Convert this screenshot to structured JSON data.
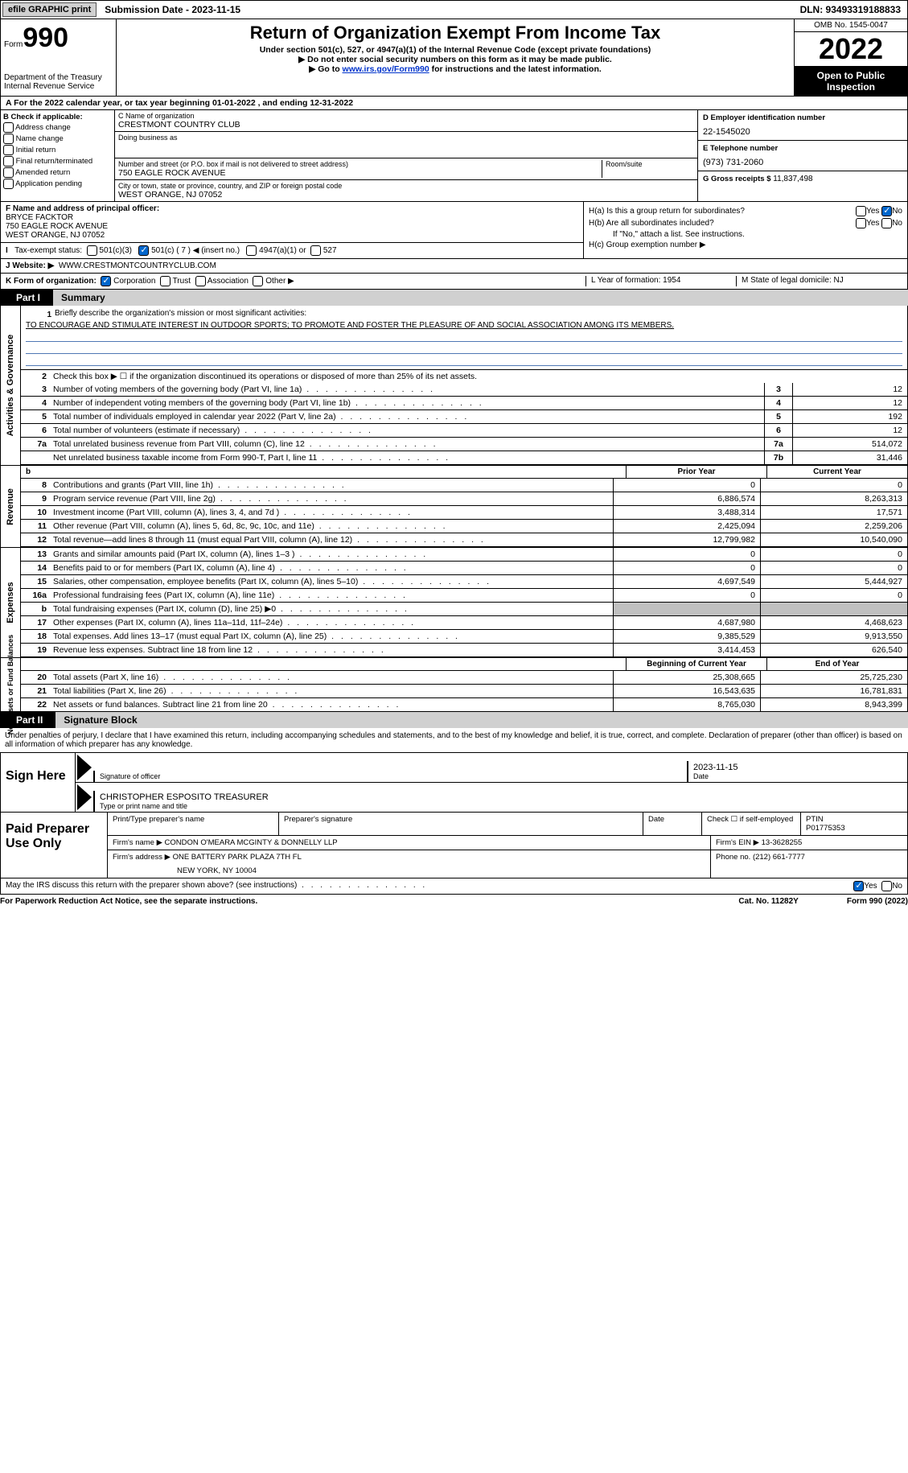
{
  "top": {
    "efile": "efile GRAPHIC print",
    "submission": "Submission Date - 2023-11-15",
    "dln": "DLN: 93493319188833"
  },
  "header": {
    "form_label": "Form",
    "form_number": "990",
    "dept": "Department of the Treasury",
    "irs": "Internal Revenue Service",
    "title": "Return of Organization Exempt From Income Tax",
    "subtitle": "Under section 501(c), 527, or 4947(a)(1) of the Internal Revenue Code (except private foundations)",
    "instr1": "▶ Do not enter social security numbers on this form as it may be made public.",
    "instr2_pre": "▶ Go to ",
    "instr2_link": "www.irs.gov/Form990",
    "instr2_post": " for instructions and the latest information.",
    "omb": "OMB No. 1545-0047",
    "year": "2022",
    "open": "Open to Public Inspection"
  },
  "line_a": "A For the 2022 calendar year, or tax year beginning 01-01-2022   , and ending 12-31-2022",
  "section_b": {
    "head": "B Check if applicable:",
    "items": [
      "Address change",
      "Name change",
      "Initial return",
      "Final return/terminated",
      "Amended return",
      "Application pending"
    ]
  },
  "section_c": {
    "name_lbl": "C Name of organization",
    "name": "CRESTMONT COUNTRY CLUB",
    "dba_lbl": "Doing business as",
    "addr_lbl": "Number and street (or P.O. box if mail is not delivered to street address)",
    "addr": "750 EAGLE ROCK AVENUE",
    "room_lbl": "Room/suite",
    "city_lbl": "City or town, state or province, country, and ZIP or foreign postal code",
    "city": "WEST ORANGE, NJ  07052"
  },
  "section_d": {
    "ein_lbl": "D Employer identification number",
    "ein": "22-1545020",
    "phone_lbl": "E Telephone number",
    "phone": "(973) 731-2060",
    "gross_lbl": "G Gross receipts $",
    "gross": "11,837,498"
  },
  "section_f": {
    "lbl": "F Name and address of principal officer:",
    "name": "BRYCE FACKTOR",
    "addr1": "750 EAGLE ROCK AVENUE",
    "addr2": "WEST ORANGE, NJ  07052"
  },
  "tax_exempt": {
    "lbl": "Tax-exempt status:",
    "o1": "501(c)(3)",
    "o2": "501(c) ( 7 ) ◀ (insert no.)",
    "o3": "4947(a)(1) or",
    "o4": "527"
  },
  "section_h": {
    "ha": "H(a)  Is this a group return for subordinates?",
    "hb": "H(b)  Are all subordinates included?",
    "hb_note": "If \"No,\" attach a list. See instructions.",
    "hc": "H(c)  Group exemption number ▶"
  },
  "website": {
    "lbl": "J   Website: ▶",
    "val": "WWW.CRESTMONTCOUNTRYCLUB.COM"
  },
  "line_k": {
    "lbl": "K Form of organization:",
    "o1": "Corporation",
    "o2": "Trust",
    "o3": "Association",
    "o4": "Other ▶",
    "l": "L Year of formation: 1954",
    "m": "M State of legal domicile: NJ"
  },
  "part1": {
    "num": "Part I",
    "title": "Summary"
  },
  "summary": {
    "tabs": {
      "gov": "Activities & Governance",
      "rev": "Revenue",
      "exp": "Expenses",
      "na": "Net Assets or Fund Balances"
    },
    "line1_lbl": "Briefly describe the organization's mission or most significant activities:",
    "line1_text": "TO ENCOURAGE AND STIMULATE INTEREST IN OUTDOOR SPORTS; TO PROMOTE AND FOSTER THE PLEASURE OF AND SOCIAL ASSOCIATION AMONG ITS MEMBERS.",
    "line2": "Check this box ▶ ☐ if the organization discontinued its operations or disposed of more than 25% of its net assets.",
    "gov_lines": [
      {
        "n": "3",
        "t": "Number of voting members of the governing body (Part VI, line 1a)",
        "box": "3",
        "v": "12"
      },
      {
        "n": "4",
        "t": "Number of independent voting members of the governing body (Part VI, line 1b)",
        "box": "4",
        "v": "12"
      },
      {
        "n": "5",
        "t": "Total number of individuals employed in calendar year 2022 (Part V, line 2a)",
        "box": "5",
        "v": "192"
      },
      {
        "n": "6",
        "t": "Total number of volunteers (estimate if necessary)",
        "box": "6",
        "v": "12"
      },
      {
        "n": "7a",
        "t": "Total unrelated business revenue from Part VIII, column (C), line 12",
        "box": "7a",
        "v": "514,072"
      },
      {
        "n": "",
        "t": "Net unrelated business taxable income from Form 990-T, Part I, line 11",
        "box": "7b",
        "v": "31,446"
      }
    ],
    "col_prior": "Prior Year",
    "col_curr": "Current Year",
    "rev_lines": [
      {
        "n": "8",
        "t": "Contributions and grants (Part VIII, line 1h)",
        "p": "0",
        "c": "0"
      },
      {
        "n": "9",
        "t": "Program service revenue (Part VIII, line 2g)",
        "p": "6,886,574",
        "c": "8,263,313"
      },
      {
        "n": "10",
        "t": "Investment income (Part VIII, column (A), lines 3, 4, and 7d )",
        "p": "3,488,314",
        "c": "17,571"
      },
      {
        "n": "11",
        "t": "Other revenue (Part VIII, column (A), lines 5, 6d, 8c, 9c, 10c, and 11e)",
        "p": "2,425,094",
        "c": "2,259,206"
      },
      {
        "n": "12",
        "t": "Total revenue—add lines 8 through 11 (must equal Part VIII, column (A), line 12)",
        "p": "12,799,982",
        "c": "10,540,090"
      }
    ],
    "exp_lines": [
      {
        "n": "13",
        "t": "Grants and similar amounts paid (Part IX, column (A), lines 1–3 )",
        "p": "0",
        "c": "0"
      },
      {
        "n": "14",
        "t": "Benefits paid to or for members (Part IX, column (A), line 4)",
        "p": "0",
        "c": "0"
      },
      {
        "n": "15",
        "t": "Salaries, other compensation, employee benefits (Part IX, column (A), lines 5–10)",
        "p": "4,697,549",
        "c": "5,444,927"
      },
      {
        "n": "16a",
        "t": "Professional fundraising fees (Part IX, column (A), line 11e)",
        "p": "0",
        "c": "0"
      },
      {
        "n": "b",
        "t": "Total fundraising expenses (Part IX, column (D), line 25) ▶0",
        "p": "SHADE",
        "c": "SHADE"
      },
      {
        "n": "17",
        "t": "Other expenses (Part IX, column (A), lines 11a–11d, 11f–24e)",
        "p": "4,687,980",
        "c": "4,468,623"
      },
      {
        "n": "18",
        "t": "Total expenses. Add lines 13–17 (must equal Part IX, column (A), line 25)",
        "p": "9,385,529",
        "c": "9,913,550"
      },
      {
        "n": "19",
        "t": "Revenue less expenses. Subtract line 18 from line 12",
        "p": "3,414,453",
        "c": "626,540"
      }
    ],
    "na_header_prior": "Beginning of Current Year",
    "na_header_curr": "End of Year",
    "na_lines": [
      {
        "n": "20",
        "t": "Total assets (Part X, line 16)",
        "p": "25,308,665",
        "c": "25,725,230"
      },
      {
        "n": "21",
        "t": "Total liabilities (Part X, line 26)",
        "p": "16,543,635",
        "c": "16,781,831"
      },
      {
        "n": "22",
        "t": "Net assets or fund balances. Subtract line 21 from line 20",
        "p": "8,765,030",
        "c": "8,943,399"
      }
    ]
  },
  "part2": {
    "num": "Part II",
    "title": "Signature Block",
    "decl": "Under penalties of perjury, I declare that I have examined this return, including accompanying schedules and statements, and to the best of my knowledge and belief, it is true, correct, and complete. Declaration of preparer (other than officer) is based on all information of which preparer has any knowledge."
  },
  "sign": {
    "here": "Sign Here",
    "sig_officer": "Signature of officer",
    "date": "Date",
    "date_val": "2023-11-15",
    "name": "CHRISTOPHER ESPOSITO  TREASURER",
    "name_lbl": "Type or print name and title"
  },
  "paid": {
    "title": "Paid Preparer Use Only",
    "r1": {
      "a": "Print/Type preparer's name",
      "b": "Preparer's signature",
      "c": "Date",
      "d": "Check ☐ if self-employed",
      "e_lbl": "PTIN",
      "e": "P01775353"
    },
    "r2": {
      "a": "Firm's name    ▶",
      "b": "CONDON O'MEARA MCGINTY & DONNELLY LLP",
      "c": "Firm's EIN ▶",
      "d": "13-3628255"
    },
    "r3": {
      "a": "Firm's address ▶",
      "b": "ONE BATTERY PARK PLAZA 7TH FL",
      "c": "Phone no. (212) 661-7777"
    },
    "r3b": "NEW YORK, NY  10004"
  },
  "discuss": "May the IRS discuss this return with the preparer shown above? (see instructions)",
  "footer": {
    "left": "For Paperwork Reduction Act Notice, see the separate instructions.",
    "mid": "Cat. No. 11282Y",
    "right": "Form 990 (2022)"
  }
}
